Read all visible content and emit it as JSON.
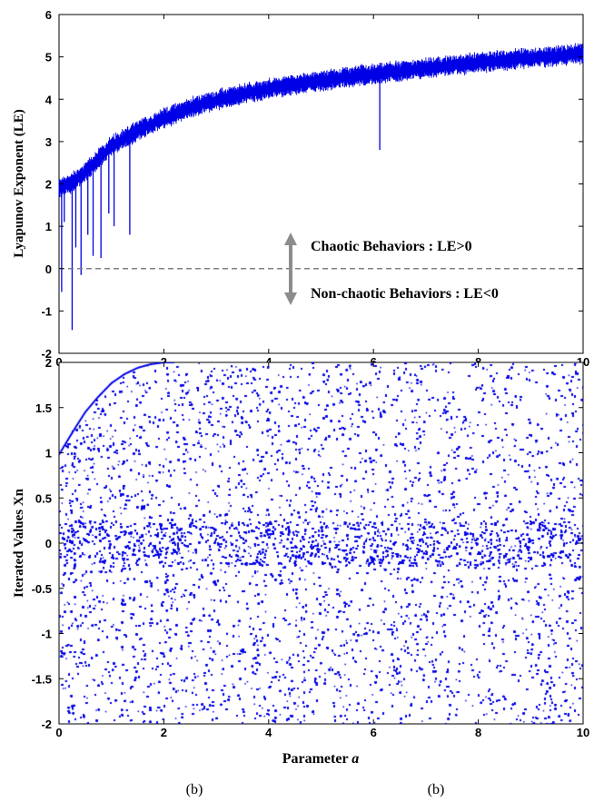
{
  "chart_data": [
    {
      "type": "line",
      "title": "",
      "xlabel": "",
      "ylabel": "Lyapunov Exponent (LE)",
      "xlim": [
        0,
        10
      ],
      "ylim": [
        -2,
        6
      ],
      "xticks": [
        0,
        2,
        4,
        6,
        8,
        10
      ],
      "yticks": [
        -2,
        -1,
        0,
        1,
        2,
        3,
        4,
        5,
        6
      ],
      "grid": false,
      "series": [
        {
          "color": "#0000e6",
          "x": [
            0,
            0.2,
            0.4,
            0.6,
            0.8,
            1.0,
            1.5,
            2.0,
            2.5,
            3.0,
            3.5,
            4.0,
            4.5,
            5.0,
            5.5,
            6.0,
            6.5,
            7.0,
            7.5,
            8.0,
            8.5,
            9.0,
            9.5,
            10.0
          ],
          "y": [
            1.9,
            2.0,
            2.15,
            2.4,
            2.65,
            2.9,
            3.25,
            3.55,
            3.8,
            3.98,
            4.12,
            4.25,
            4.35,
            4.43,
            4.52,
            4.6,
            4.67,
            4.73,
            4.8,
            4.86,
            4.92,
            4.97,
            5.02,
            5.08
          ]
        }
      ],
      "dips": [
        {
          "x": 0.05,
          "y": -0.55
        },
        {
          "x": 0.1,
          "y": 1.1
        },
        {
          "x": 0.25,
          "y": -1.45
        },
        {
          "x": 0.32,
          "y": 0.5
        },
        {
          "x": 0.42,
          "y": -0.15
        },
        {
          "x": 0.55,
          "y": 0.8
        },
        {
          "x": 0.65,
          "y": 0.3
        },
        {
          "x": 0.8,
          "y": 0.25
        },
        {
          "x": 0.95,
          "y": 1.3
        },
        {
          "x": 1.05,
          "y": 1.0
        },
        {
          "x": 1.35,
          "y": 0.8
        },
        {
          "x": 6.12,
          "y": 2.8
        }
      ],
      "reference_line": {
        "y": 0,
        "style": "dashed",
        "color": "#808080"
      },
      "annotations": {
        "chaotic": "Chaotic Behaviors : LE>0",
        "non_chaotic": "Non-chaotic Behaviors : LE<0"
      }
    },
    {
      "type": "scatter",
      "title": "",
      "xlabel": "Parameter a",
      "ylabel": "Iterated Values Xn",
      "xlim": [
        0,
        10
      ],
      "ylim": [
        -2,
        2
      ],
      "xticks": [
        0,
        2,
        4,
        6,
        8,
        10
      ],
      "yticks": [
        -2,
        -1.5,
        -1,
        -0.5,
        0,
        0.5,
        1,
        1.5,
        2
      ],
      "grid": false,
      "series": [
        {
          "color": "#0000e6",
          "description_values": "dense points filling [-2, 2] for all a in [0, 10]"
        }
      ],
      "upper_envelope": {
        "x": [
          0,
          0.25,
          0.5,
          0.75,
          1.0,
          1.25,
          1.5,
          1.75,
          2.0,
          10
        ],
        "y": [
          0.98,
          1.22,
          1.45,
          1.62,
          1.77,
          1.87,
          1.94,
          1.98,
          2.0,
          2.0
        ]
      }
    }
  ],
  "labels": {
    "top_ylabel": "Lyapunov Exponent (LE)",
    "bottom_ylabel": "Iterated Values Xn",
    "bottom_xlabel_text": "Parameter ",
    "bottom_xlabel_var": "a",
    "top_xticks": [
      "0",
      "2",
      "4",
      "6",
      "8",
      "10"
    ],
    "top_yticks": [
      "-2",
      "-1",
      "0",
      "1",
      "2",
      "3",
      "4",
      "5",
      "6"
    ],
    "bottom_xticks": [
      "0",
      "2",
      "4",
      "6",
      "8",
      "10"
    ],
    "bottom_yticks": [
      "-2",
      "-1.5",
      "-1",
      "-0.5",
      "0",
      "0.5",
      "1",
      "1.5",
      "2"
    ],
    "annot_chaotic": "Chaotic Behaviors : LE>0",
    "annot_non_chaotic": "Non-chaotic Behaviors : LE<0",
    "caption_left": "(b)",
    "caption_right": "(b)"
  },
  "colors": {
    "series": "#0000e6",
    "dashed": "#808080",
    "arrow": "#8c8c8c"
  }
}
